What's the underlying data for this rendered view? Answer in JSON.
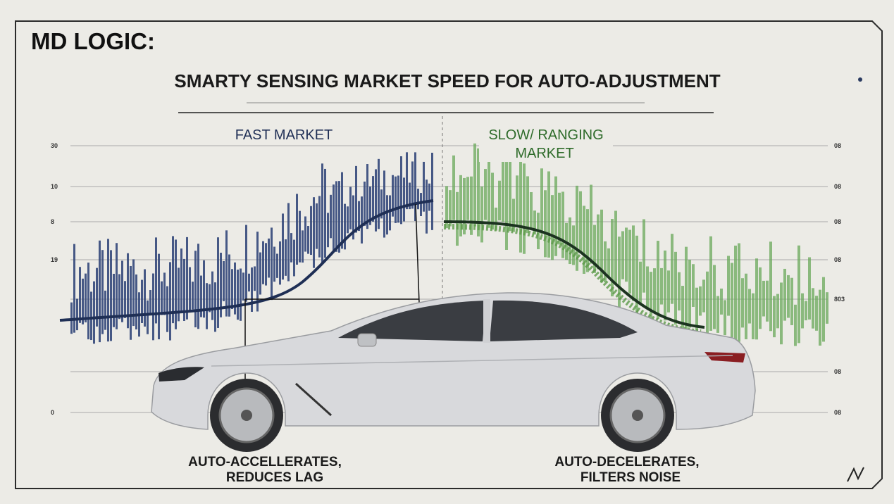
{
  "header": {
    "title": "MD LOGIC:",
    "subtitle": "SMARTY SENSING MARKET SPEED FOR AUTO-ADJUSTMENT"
  },
  "zones": {
    "fast": "FAST MARKET",
    "slow": [
      "SLOW/ RANGING",
      "MARKET"
    ]
  },
  "left_axis_labels": [
    "30",
    "10",
    "8",
    "19",
    "0"
  ],
  "right_axis_labels": [
    "08",
    "08",
    "08",
    "08",
    "803",
    "08",
    "08"
  ],
  "captions": {
    "left": [
      "AUTO-ACCELLERATES,",
      "REDUCES LAG"
    ],
    "right": [
      "AUTO-DECELERATES,",
      "FILTERS NOISE"
    ]
  }
}
